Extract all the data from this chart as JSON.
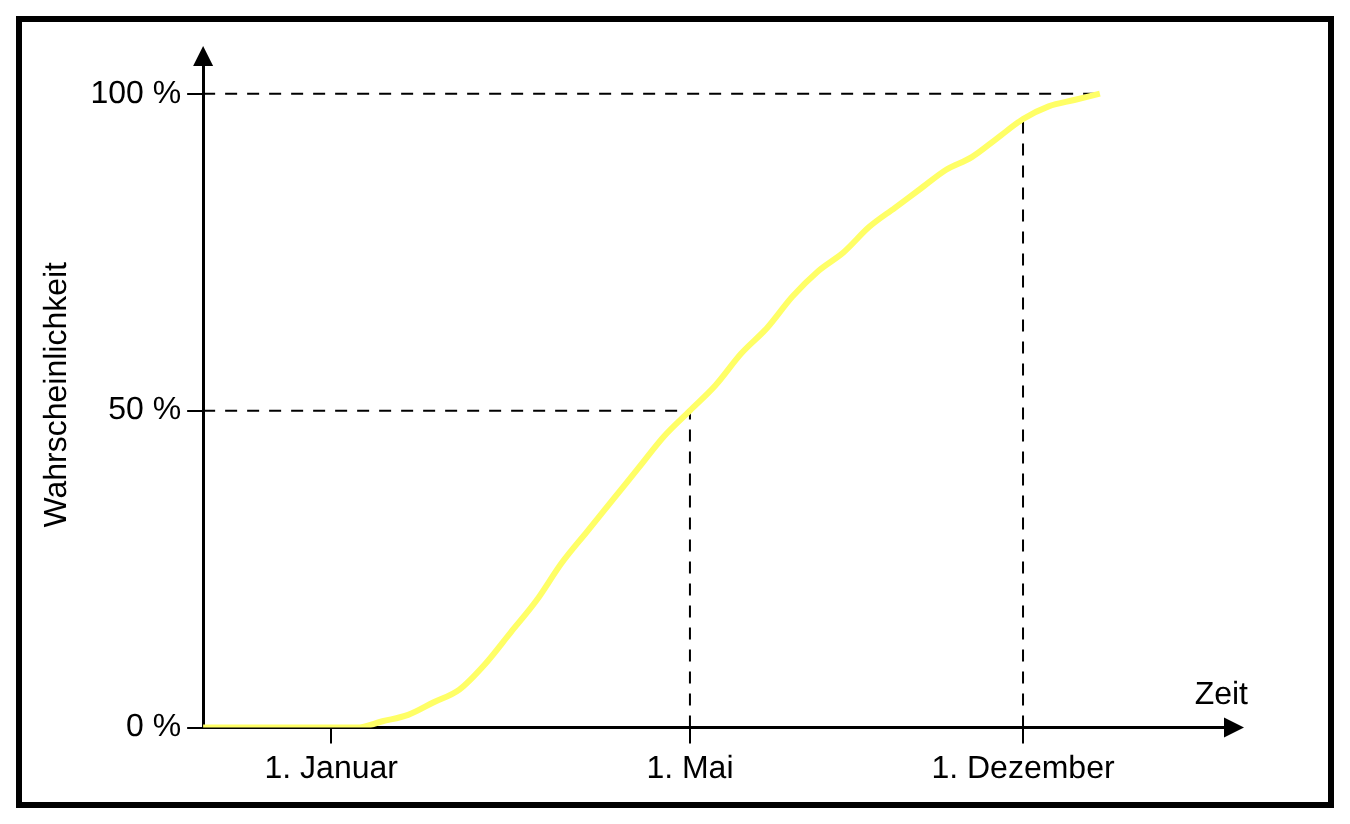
{
  "chart_data": {
    "type": "line",
    "xlabel": "Zeit",
    "ylabel": "Wahrscheinlichkeit",
    "categories": [
      null,
      null,
      null,
      null,
      null,
      "1. Januar",
      null,
      null,
      null,
      null,
      null,
      null,
      null,
      null,
      null,
      null,
      null,
      null,
      null,
      "1. Mai",
      null,
      null,
      null,
      null,
      null,
      null,
      null,
      null,
      null,
      null,
      null,
      null,
      "1. Dezember",
      null,
      null,
      null,
      null,
      null,
      null,
      null,
      null
    ],
    "ylim": [
      0,
      105
    ],
    "yticks": [
      {
        "value": 0,
        "label": "0 %"
      },
      {
        "value": 50,
        "label": "50 %"
      },
      {
        "value": 100,
        "label": "100 %"
      }
    ],
    "series": [
      {
        "color": "#ffff66",
        "values": [
          0,
          0,
          0,
          0,
          0,
          0,
          0,
          1,
          2,
          4,
          6,
          10,
          15,
          20,
          26,
          31,
          36,
          41,
          46,
          50,
          54,
          59,
          63,
          68,
          72,
          75,
          79,
          82,
          85,
          88,
          90,
          93,
          96,
          98,
          99,
          100,
          null,
          null,
          null,
          null,
          null
        ]
      }
    ],
    "ref_lines": [
      {
        "axis": "y",
        "value": 50,
        "color": "#000000",
        "line_style": "dashed"
      },
      {
        "axis": "y",
        "value": 100,
        "color": "#000000",
        "line_style": "dashed"
      },
      {
        "axis": "x",
        "value": "1. Mai",
        "color": "#000000",
        "line_style": "dashed"
      },
      {
        "axis": "x",
        "value": "1. Dezember",
        "color": "#000000",
        "line_style": "dashed"
      }
    ],
    "grid": false,
    "legend": false,
    "marker": "none",
    "line_style": "solid"
  }
}
